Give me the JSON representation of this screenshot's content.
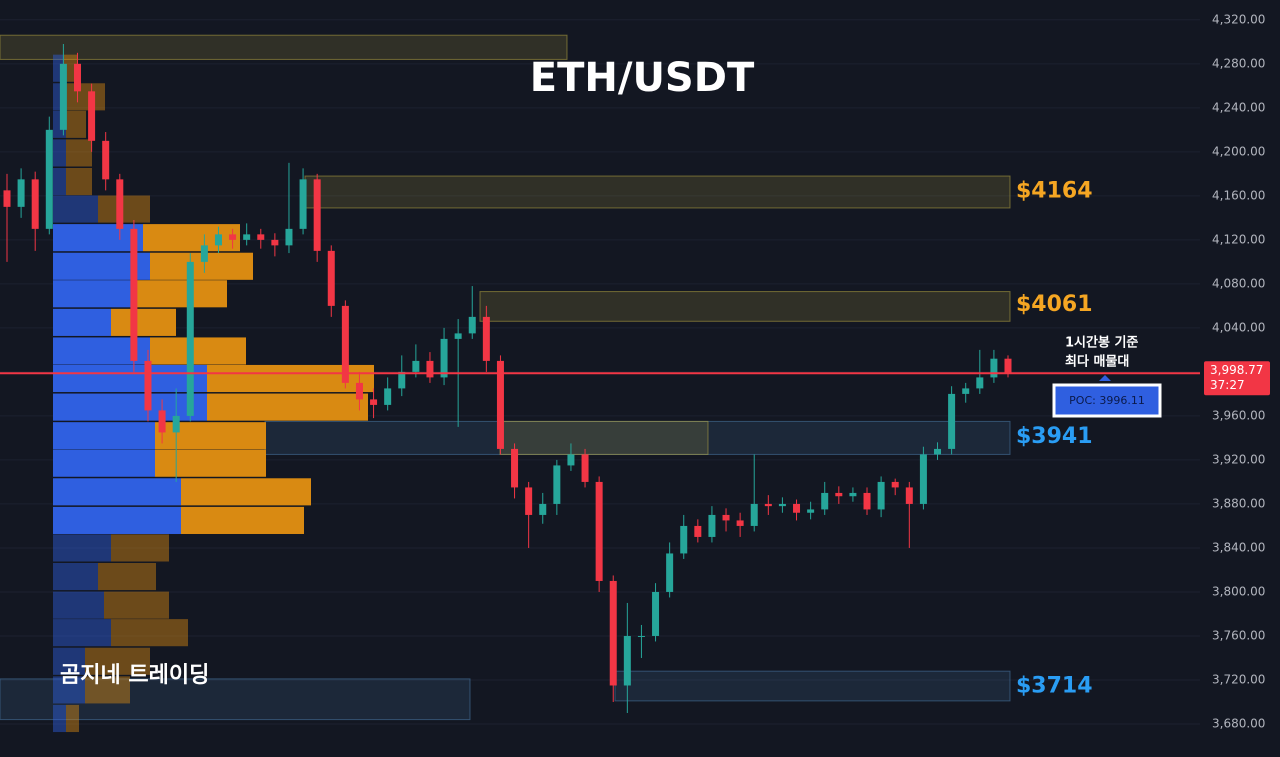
{
  "chart_data": {
    "type": "candlestick",
    "title": "ETH/USDT",
    "up_color": "#26a69a",
    "down_color": "#f23645",
    "ylim": [
      3650,
      4338
    ],
    "yticks": [
      {
        "value": 3680,
        "label": "3,680.00"
      },
      {
        "value": 3720,
        "label": "3,720.00"
      },
      {
        "value": 3760,
        "label": "3,760.00"
      },
      {
        "value": 3800,
        "label": "3,800.00"
      },
      {
        "value": 3840,
        "label": "3,840.00"
      },
      {
        "value": 3880,
        "label": "3,880.00"
      },
      {
        "value": 3920,
        "label": "3,920.00"
      },
      {
        "value": 3960,
        "label": "3,960.00"
      },
      {
        "value": 4000,
        "label": "4,000.00"
      },
      {
        "value": 4040,
        "label": "4,040.00"
      },
      {
        "value": 4080,
        "label": "4,080.00"
      },
      {
        "value": 4120,
        "label": "4,120.00"
      },
      {
        "value": 4160,
        "label": "4,160.00"
      },
      {
        "value": 4200,
        "label": "4,200.00"
      },
      {
        "value": 4240,
        "label": "4,240.00"
      },
      {
        "value": 4280,
        "label": "4,280.00"
      },
      {
        "value": 4320,
        "label": "4,320.00"
      }
    ],
    "grid": true,
    "open": [
      4165,
      4150,
      4175,
      4130,
      4220,
      4280,
      4255,
      4210,
      4175,
      4130,
      4010,
      3965,
      3945,
      3960,
      4100,
      4115,
      4125,
      4120,
      4125,
      4120,
      4115,
      4130,
      4175,
      4110,
      4060,
      3990,
      3975,
      3970,
      3985,
      4000,
      4010,
      3995,
      4030,
      4035,
      4050,
      4010,
      3930,
      3895,
      3870,
      3880,
      3915,
      3925,
      3900,
      3810,
      3715,
      3760,
      3760,
      3800,
      3835,
      3860,
      3850,
      3870,
      3865,
      3860,
      3880,
      3878,
      3880,
      3872,
      3875,
      3890,
      3887,
      3890,
      3875,
      3900,
      3895,
      3880,
      3925,
      3930,
      3980,
      3985,
      3995,
      4012
    ],
    "high": [
      4180,
      4185,
      4182,
      4232,
      4298,
      4290,
      4262,
      4218,
      4180,
      4138,
      4020,
      3975,
      3985,
      4108,
      4125,
      4132,
      4130,
      4135,
      4130,
      4126,
      4190,
      4185,
      4180,
      4115,
      4065,
      4000,
      3985,
      3995,
      4015,
      4025,
      4018,
      4040,
      4048,
      4078,
      4060,
      4015,
      3935,
      3900,
      3890,
      3920,
      3935,
      3930,
      3905,
      3815,
      3790,
      3770,
      3808,
      3845,
      3870,
      3866,
      3878,
      3876,
      3872,
      3925,
      3888,
      3886,
      3884,
      3882,
      3900,
      3896,
      3895,
      3895,
      3905,
      3903,
      3900,
      3932,
      3936,
      3987,
      3990,
      4020,
      4020,
      4015
    ],
    "low": [
      4100,
      4140,
      4110,
      4125,
      4215,
      4245,
      4200,
      4165,
      4120,
      4000,
      3955,
      3935,
      3900,
      3955,
      4090,
      4108,
      4112,
      4115,
      4112,
      4105,
      4108,
      4125,
      4100,
      4050,
      3985,
      3965,
      3958,
      3965,
      3978,
      3995,
      3990,
      3988,
      3950,
      4030,
      4000,
      3925,
      3885,
      3840,
      3862,
      3870,
      3910,
      3895,
      3800,
      3700,
      3690,
      3740,
      3755,
      3795,
      3830,
      3845,
      3845,
      3855,
      3850,
      3855,
      3870,
      3872,
      3865,
      3866,
      3870,
      3880,
      3882,
      3870,
      3868,
      3888,
      3840,
      3875,
      3920,
      3925,
      3972,
      3980,
      3990,
      3995
    ],
    "close": [
      4150,
      4175,
      4130,
      4220,
      4280,
      4255,
      4210,
      4175,
      4130,
      4010,
      3965,
      3945,
      3960,
      4100,
      4115,
      4125,
      4120,
      4125,
      4120,
      4115,
      4130,
      4175,
      4110,
      4060,
      3990,
      3975,
      3970,
      3985,
      4000,
      4010,
      3995,
      4030,
      4035,
      4050,
      4010,
      3930,
      3895,
      3870,
      3880,
      3915,
      3925,
      3900,
      3810,
      3715,
      3760,
      3760,
      3800,
      3835,
      3860,
      3850,
      3870,
      3865,
      3860,
      3880,
      3878,
      3880,
      3872,
      3875,
      3890,
      3887,
      3890,
      3875,
      3900,
      3895,
      3880,
      3925,
      3930,
      3980,
      3985,
      3995,
      4012,
      3999
    ],
    "volume_profile": {
      "price": [
        4276,
        4250,
        4225,
        4199,
        4173,
        4148,
        4122,
        4096,
        4071,
        4045,
        4019,
        3994,
        3968,
        3942,
        3917,
        3891,
        3865,
        3840,
        3814,
        3788,
        3763,
        3737,
        3711,
        3685
      ],
      "buy": [
        11,
        13,
        13,
        13,
        13,
        45,
        90,
        97,
        83,
        58,
        97,
        154,
        154,
        102,
        102,
        128,
        128,
        58,
        45,
        51,
        58,
        32,
        32,
        13
      ],
      "sell": [
        14,
        39,
        20,
        26,
        26,
        52,
        97,
        103,
        91,
        65,
        96,
        167,
        161,
        111,
        111,
        130,
        123,
        58,
        58,
        65,
        77,
        65,
        45,
        13
      ],
      "xlim": [
        0,
        330
      ],
      "value_area": [
        3865,
        4122
      ],
      "buy_color": "#2f5fe0",
      "sell_color": "#d98a12"
    },
    "zones": [
      {
        "low": 4284,
        "high": 4306,
        "color": "#b5a642"
      },
      {
        "low": 4149,
        "high": 4178,
        "color": "#b5a642",
        "label_color": "#f5a623",
        "price": {
          "value": 4164,
          "label": "$4164"
        }
      },
      {
        "low": 4046,
        "high": 4073,
        "color": "#b5a642",
        "label_color": "#f5a623",
        "price": {
          "value": 4061,
          "label": "$4061"
        }
      },
      {
        "low": 3925,
        "high": 3955,
        "color": "#4a7aa8",
        "label_color": "#2a9df4",
        "price": {
          "value": 3941,
          "label": "$3941"
        }
      },
      {
        "low": 3925,
        "high": 3955,
        "color": "#b5a642"
      },
      {
        "low": 3701,
        "high": 3728,
        "color": "#4a7aa8",
        "label_color": "#2a9df4",
        "price": {
          "value": 3714,
          "label": "$3714"
        }
      },
      {
        "low": 3684,
        "high": 3721,
        "color": "#4a7aa8"
      }
    ],
    "current_price": {
      "value": 3998.77,
      "label": "3,998.77"
    },
    "countdown": "37:27",
    "poc": {
      "value": 3996.11,
      "label": "POC: 3996.11"
    },
    "annotation": [
      "1시간봉 기준",
      "최다 매물대"
    ],
    "watermark": "곰지네 트레이딩"
  }
}
